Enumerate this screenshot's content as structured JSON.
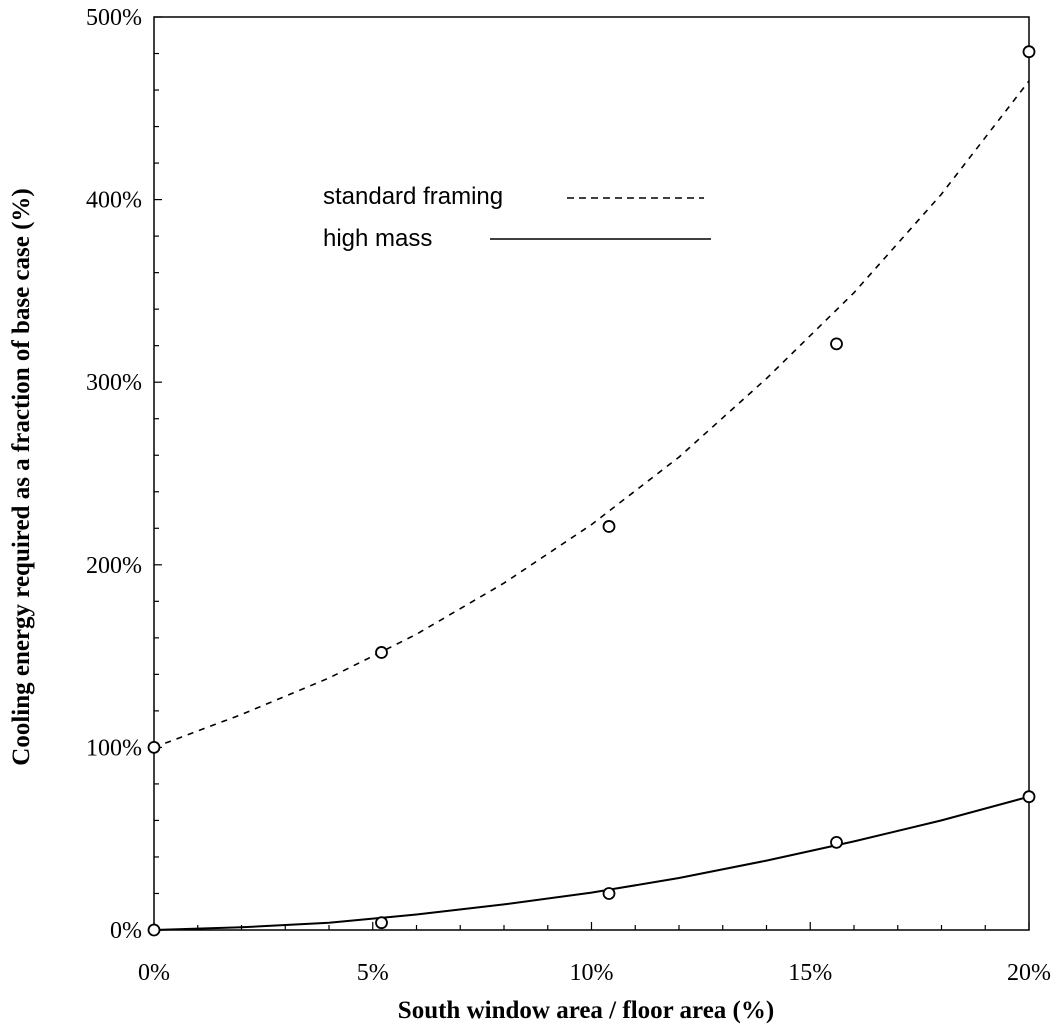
{
  "chart_data": {
    "type": "scatter",
    "title": "",
    "xlabel": "South window area / floor area (%)",
    "ylabel": "Cooling energy required as a fraction of base case (%)",
    "xlim": [
      0,
      20
    ],
    "ylim": [
      0,
      500
    ],
    "x_ticks": [
      0,
      5,
      10,
      15,
      20
    ],
    "x_tick_labels": [
      "0%",
      "5%",
      "10%",
      "15%",
      "20%"
    ],
    "y_ticks": [
      0,
      100,
      200,
      300,
      400,
      500
    ],
    "y_tick_labels": [
      "0%",
      "100%",
      "200%",
      "300%",
      "400%",
      "500%"
    ],
    "grid": false,
    "legend_position": "top-center",
    "series": [
      {
        "name": "standard framing",
        "line_style": "dashed",
        "x": [
          0,
          5.2,
          10.4,
          15.6,
          20.0
        ],
        "y": [
          100,
          152,
          221,
          321,
          481
        ],
        "trend": [
          [
            0,
            100
          ],
          [
            2,
            118
          ],
          [
            4,
            138
          ],
          [
            6,
            162
          ],
          [
            8,
            190
          ],
          [
            10,
            222
          ],
          [
            12,
            259
          ],
          [
            14,
            302
          ],
          [
            16,
            349
          ],
          [
            18,
            403
          ],
          [
            20,
            465
          ]
        ]
      },
      {
        "name": "high mass",
        "line_style": "solid",
        "x": [
          0,
          5.2,
          10.4,
          15.6,
          20.0
        ],
        "y": [
          0,
          4,
          20,
          48,
          73
        ],
        "trend": [
          [
            0,
            0
          ],
          [
            2,
            1.5
          ],
          [
            4,
            4
          ],
          [
            6,
            8.5
          ],
          [
            8,
            14
          ],
          [
            10,
            20.5
          ],
          [
            12,
            28.5
          ],
          [
            14,
            38
          ],
          [
            16,
            48.5
          ],
          [
            18,
            60
          ],
          [
            20,
            73
          ]
        ]
      }
    ]
  }
}
